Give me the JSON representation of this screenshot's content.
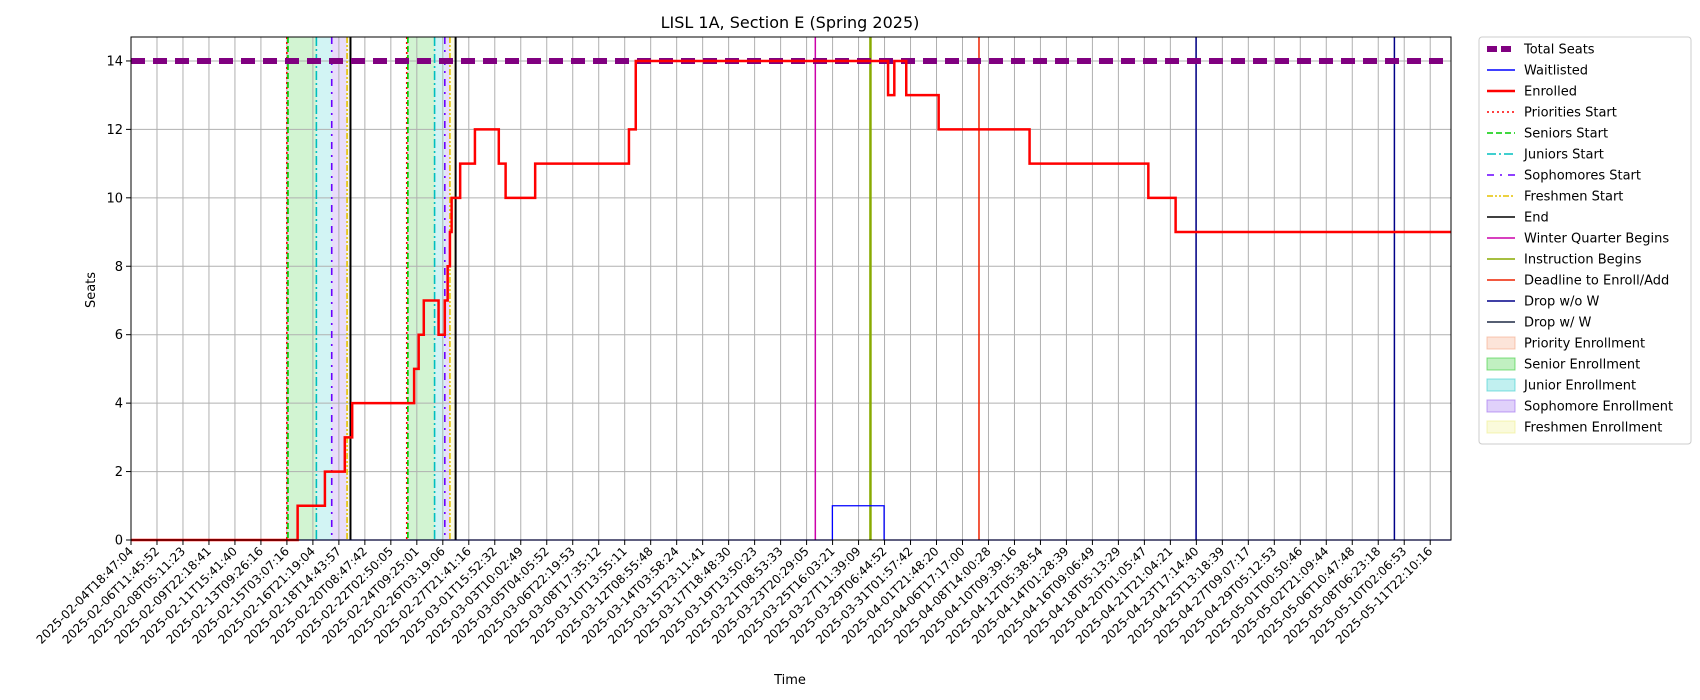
{
  "chart_data": {
    "type": "line",
    "title": "LISL 1A, Section E (Spring 2025)",
    "xlabel": "Time",
    "ylabel": "Seats",
    "ylim": [
      0,
      14.7
    ],
    "yticks": [
      0,
      2,
      4,
      6,
      8,
      10,
      12,
      14
    ],
    "grid": true,
    "legend_position": "outside-right",
    "xlim": [
      "2025-02-04T18:47:04",
      "2025-05-12T13:36:00"
    ],
    "xtick_labels": [
      "2025-02-04T18:47:04",
      "2025-02-06T11:45:52",
      "2025-02-08T05:11:23",
      "2025-02-09T22:18:41",
      "2025-02-11T15:41:40",
      "2025-02-13T09:26:16",
      "2025-02-15T03:07:16",
      "2025-02-16T21:19:04",
      "2025-02-18T14:43:57",
      "2025-02-20T08:47:42",
      "2025-02-22T02:50:05",
      "2025-02-24T09:25:01",
      "2025-02-26T03:19:06",
      "2025-02-27T21:41:16",
      "2025-03-01T15:52:32",
      "2025-03-03T10:02:49",
      "2025-03-05T04:05:52",
      "2025-03-06T22:19:53",
      "2025-03-08T17:35:12",
      "2025-03-10T13:55:11",
      "2025-03-12T08:55:48",
      "2025-03-14T03:58:24",
      "2025-03-15T23:11:41",
      "2025-03-17T18:48:30",
      "2025-03-19T13:50:23",
      "2025-03-21T08:53:33",
      "2025-03-23T20:29:05",
      "2025-03-25T16:03:21",
      "2025-03-27T11:39:09",
      "2025-03-29T06:44:52",
      "2025-03-31T01:57:42",
      "2025-04-01T21:48:20",
      "2025-04-06T17:17:00",
      "2025-04-08T14:00:28",
      "2025-04-10T09:39:16",
      "2025-04-12T05:38:54",
      "2025-04-14T01:28:39",
      "2025-04-16T09:06:49",
      "2025-04-18T05:13:29",
      "2025-04-20T01:05:47",
      "2025-04-21T21:04:21",
      "2025-04-23T17:14:40",
      "2025-04-25T13:18:39",
      "2025-04-27T09:07:17",
      "2025-04-29T05:12:53",
      "2025-05-01T00:50:46",
      "2025-05-02T21:09:44",
      "2025-05-06T10:47:48",
      "2025-05-08T06:23:18",
      "2025-05-10T02:06:53",
      "2025-05-11T22:10:16"
    ],
    "series": [
      {
        "name": "Total Seats",
        "color": "#800080",
        "style": "dashed-thick",
        "points": [
          [
            "2025-02-04T18:47:04",
            14
          ],
          [
            "2025-05-12T13:36:00",
            14
          ]
        ]
      },
      {
        "name": "Waitlisted",
        "color": "#0000ff",
        "style": "steps-post",
        "points": [
          [
            "2025-02-04T18:47:04",
            0
          ],
          [
            "2025-03-28T05:00:00",
            1
          ],
          [
            "2025-04-01T00:00:00",
            0
          ],
          [
            "2025-05-12T13:36:00",
            0
          ]
        ]
      },
      {
        "name": "Enrolled",
        "color": "#ff0000",
        "style": "steps-post",
        "points": [
          [
            "2025-02-04T18:47:04",
            0
          ],
          [
            "2025-02-17T00:00:00",
            1
          ],
          [
            "2025-02-19T00:00:00",
            2
          ],
          [
            "2025-02-20T11:00:00",
            3
          ],
          [
            "2025-02-21T00:00:00",
            4
          ],
          [
            "2025-02-25T13:00:00",
            5
          ],
          [
            "2025-02-25T21:00:00",
            6
          ],
          [
            "2025-02-26T06:00:00",
            7
          ],
          [
            "2025-02-27T08:00:00",
            6
          ],
          [
            "2025-02-27T19:00:00",
            7
          ],
          [
            "2025-02-28T00:00:00",
            8
          ],
          [
            "2025-02-28T04:00:00",
            9
          ],
          [
            "2025-02-28T07:00:00",
            10
          ],
          [
            "2025-02-28T22:00:00",
            11
          ],
          [
            "2025-03-02T00:00:00",
            12
          ],
          [
            "2025-03-03T18:00:00",
            11
          ],
          [
            "2025-03-04T06:00:00",
            10
          ],
          [
            "2025-03-06T10:00:00",
            11
          ],
          [
            "2025-03-13T07:00:00",
            12
          ],
          [
            "2025-03-13T19:00:00",
            14
          ],
          [
            "2025-04-01T07:00:00",
            13
          ],
          [
            "2025-04-01T18:00:00",
            14
          ],
          [
            "2025-04-02T15:00:00",
            13
          ],
          [
            "2025-04-05T00:00:00",
            12
          ],
          [
            "2025-04-11T16:00:00",
            11
          ],
          [
            "2025-04-20T09:00:00",
            10
          ],
          [
            "2025-04-22T09:00:00",
            9
          ],
          [
            "2025-05-12T13:36:00",
            9
          ]
        ]
      }
    ],
    "period_lines": [
      {
        "name": "Priorities Start",
        "color": "#ff0000",
        "style": "dotted",
        "dates": [
          "2025-02-16T05:00:00",
          "2025-02-25T00:00:00"
        ]
      },
      {
        "name": "Seniors Start",
        "color": "#00cc00",
        "style": "dashed",
        "dates": [
          "2025-02-16T07:00:00",
          "2025-02-25T02:00:00"
        ]
      },
      {
        "name": "Juniors Start",
        "color": "#00bfbf",
        "style": "dashdot",
        "dates": [
          "2025-02-18T09:00:00",
          "2025-02-27T01:00:00"
        ]
      },
      {
        "name": "Sophomores Start",
        "color": "#6a00ff",
        "style": "dashdot-sparse",
        "dates": [
          "2025-02-19T12:00:00",
          "2025-02-27T19:00:00"
        ]
      },
      {
        "name": "Freshmen Start",
        "color": "#e6c200",
        "style": "dashdotdot",
        "dates": [
          "2025-02-20T15:00:00",
          "2025-02-28T04:00:00"
        ]
      },
      {
        "name": "End",
        "color": "#000000",
        "style": "solid",
        "dates": [
          "2025-02-20T21:00:00",
          "2025-02-28T14:00:00"
        ]
      }
    ],
    "event_lines": [
      {
        "name": "Winter Quarter Begins",
        "color": "#cc00aa",
        "date": "2025-03-26T23:00:00"
      },
      {
        "name": "Instruction Begins",
        "color": "#88aa00",
        "date": "2025-03-31T00:00:00"
      },
      {
        "name": "Deadline to Enroll/Add",
        "color": "#ee2200",
        "date": "2025-04-07T23:00:00"
      },
      {
        "name": "Drop w/o W",
        "color": "#000088",
        "dates": [
          "2025-04-23T21:00:00",
          "2025-05-08T10:00:00"
        ]
      },
      {
        "name": "Drop w/ W",
        "color": "#1e2a45",
        "dates": []
      }
    ],
    "spans": [
      {
        "name": "Priority Enrollment",
        "color": "#f4a582",
        "ranges": [
          [
            "2025-02-16T05:00:00",
            "2025-02-16T07:00:00"
          ],
          [
            "2025-02-25T00:00:00",
            "2025-02-25T02:00:00"
          ]
        ]
      },
      {
        "name": "Senior Enrollment",
        "color": "#33cc33",
        "ranges": [
          [
            "2025-02-16T07:00:00",
            "2025-02-18T09:00:00"
          ],
          [
            "2025-02-25T02:00:00",
            "2025-02-27T01:00:00"
          ]
        ]
      },
      {
        "name": "Junior Enrollment",
        "color": "#33cccc",
        "ranges": [
          [
            "2025-02-18T09:00:00",
            "2025-02-19T12:00:00"
          ],
          [
            "2025-02-27T01:00:00",
            "2025-02-27T19:00:00"
          ]
        ]
      },
      {
        "name": "Sophomore Enrollment",
        "color": "#9966ee",
        "ranges": [
          [
            "2025-02-19T12:00:00",
            "2025-02-20T15:00:00"
          ],
          [
            "2025-02-27T19:00:00",
            "2025-02-28T04:00:00"
          ]
        ]
      },
      {
        "name": "Freshmen Enrollment",
        "color": "#eeee88",
        "ranges": [
          [
            "2025-02-20T15:00:00",
            "2025-02-20T21:00:00"
          ],
          [
            "2025-02-28T04:00:00",
            "2025-02-28T14:00:00"
          ]
        ]
      }
    ],
    "legend": [
      {
        "label": "Total Seats",
        "kind": "line",
        "color": "#800080",
        "style": "dashed-thick"
      },
      {
        "label": "Waitlisted",
        "kind": "line",
        "color": "#0000ff",
        "style": "solid"
      },
      {
        "label": "Enrolled",
        "kind": "line",
        "color": "#ff0000",
        "style": "solid-thick"
      },
      {
        "label": "Priorities Start",
        "kind": "line",
        "color": "#ff0000",
        "style": "dotted"
      },
      {
        "label": "Seniors Start",
        "kind": "line",
        "color": "#00cc00",
        "style": "dashed"
      },
      {
        "label": "Juniors Start",
        "kind": "line",
        "color": "#00bfbf",
        "style": "dashdot"
      },
      {
        "label": "Sophomores Start",
        "kind": "line",
        "color": "#6a00ff",
        "style": "dashdot-sparse"
      },
      {
        "label": "Freshmen Start",
        "kind": "line",
        "color": "#e6c200",
        "style": "dashdotdot"
      },
      {
        "label": "End",
        "kind": "line",
        "color": "#000000",
        "style": "solid"
      },
      {
        "label": "Winter Quarter Begins",
        "kind": "line",
        "color": "#cc00aa",
        "style": "solid"
      },
      {
        "label": "Instruction Begins",
        "kind": "line",
        "color": "#88aa00",
        "style": "solid"
      },
      {
        "label": "Deadline to Enroll/Add",
        "kind": "line",
        "color": "#ee2200",
        "style": "solid"
      },
      {
        "label": "Drop w/o W",
        "kind": "line",
        "color": "#000088",
        "style": "solid"
      },
      {
        "label": "Drop w/ W",
        "kind": "line",
        "color": "#1e2a45",
        "style": "solid"
      },
      {
        "label": "Priority Enrollment",
        "kind": "patch",
        "color": "#f4a582"
      },
      {
        "label": "Senior Enrollment",
        "kind": "patch",
        "color": "#33cc33"
      },
      {
        "label": "Junior Enrollment",
        "kind": "patch",
        "color": "#33cccc"
      },
      {
        "label": "Sophomore Enrollment",
        "kind": "patch",
        "color": "#9966ee"
      },
      {
        "label": "Freshmen Enrollment",
        "kind": "patch",
        "color": "#eeee88"
      }
    ]
  }
}
